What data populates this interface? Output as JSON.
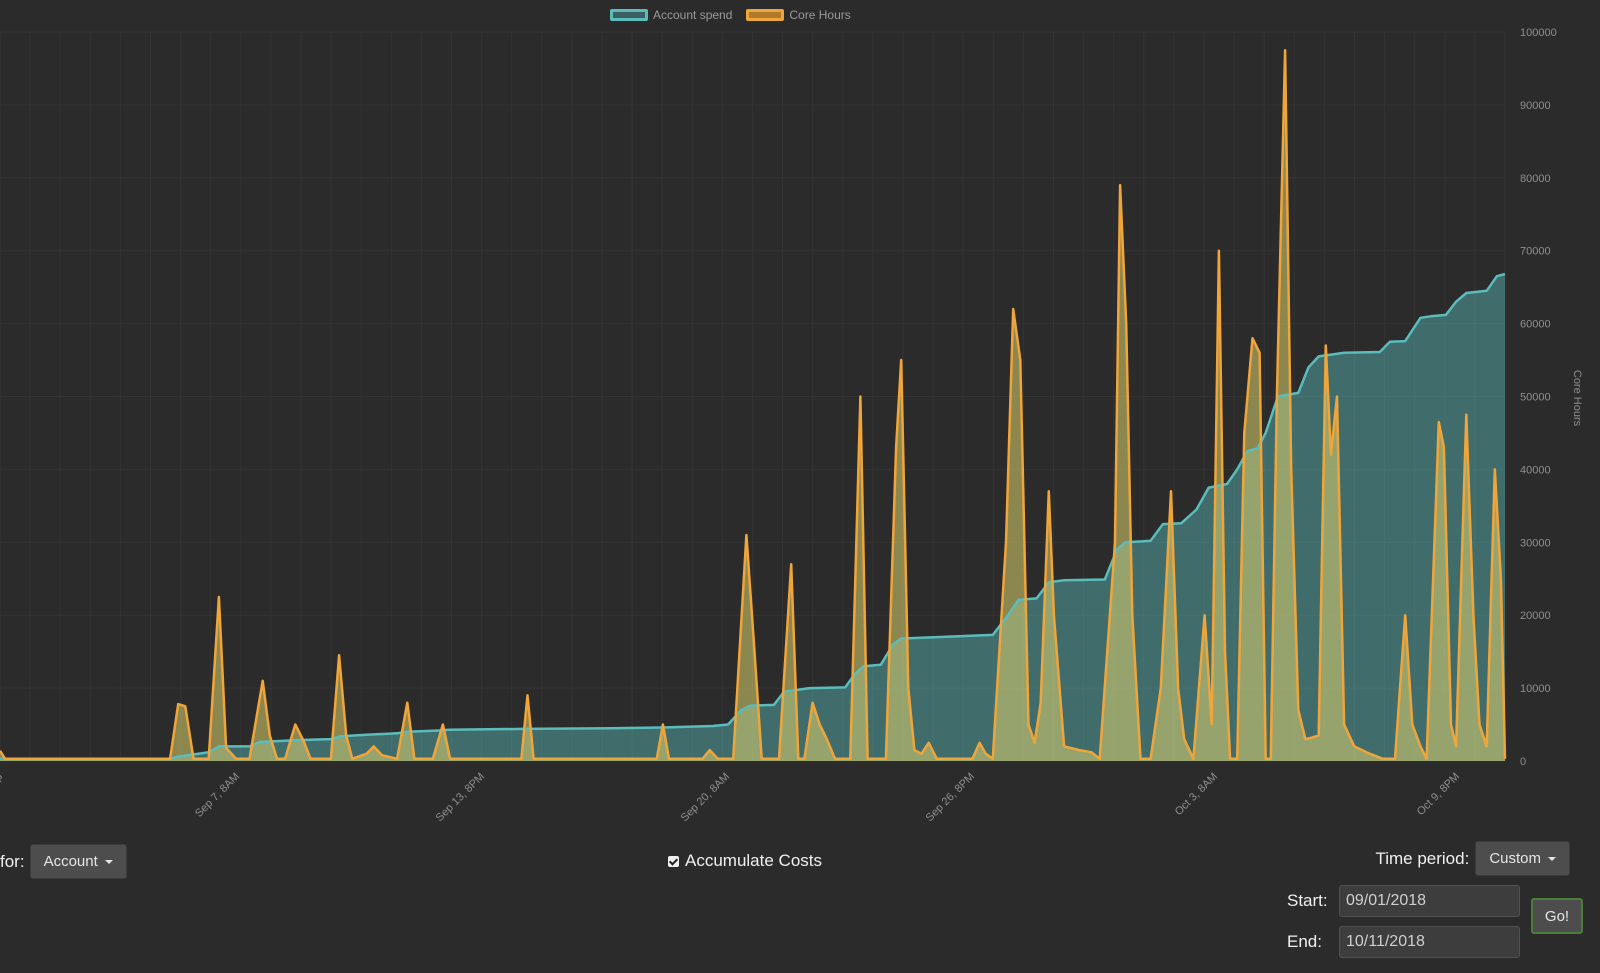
{
  "chart_data": {
    "type": "area",
    "legend": [
      {
        "label": "Account spend",
        "color": "#5bbcbc"
      },
      {
        "label": "Core Hours",
        "color": "#f0a53a"
      }
    ],
    "y_axis_right": {
      "label": "Core Hours",
      "ticks": [
        0,
        10000,
        20000,
        30000,
        40000,
        50000,
        60000,
        70000,
        80000,
        90000,
        100000
      ],
      "ylim": [
        0,
        100000
      ]
    },
    "x_axis": {
      "ticks": [
        "Sep 7, 8AM",
        "Sep 13, 8PM",
        "Sep 20, 8AM",
        "Sep 26, 8PM",
        "Oct 3, 8AM",
        "Oct 9, 8PM"
      ]
    },
    "grid": true,
    "series": [
      {
        "name": "Account spend",
        "color": "#5bbcbc",
        "fill": "rgba(91,188,188,0.45)",
        "points": [
          [
            0,
            300
          ],
          [
            167,
            300
          ],
          [
            175,
            600
          ],
          [
            205,
            1200
          ],
          [
            215,
            2000
          ],
          [
            245,
            2000
          ],
          [
            255,
            2600
          ],
          [
            282,
            2800
          ],
          [
            300,
            2900
          ],
          [
            325,
            3000
          ],
          [
            335,
            3400
          ],
          [
            360,
            3600
          ],
          [
            390,
            3800
          ],
          [
            400,
            4000
          ],
          [
            435,
            4200
          ],
          [
            440,
            4300
          ],
          [
            515,
            4400
          ],
          [
            600,
            4500
          ],
          [
            650,
            4600
          ],
          [
            700,
            4800
          ],
          [
            715,
            5000
          ],
          [
            728,
            7000
          ],
          [
            737,
            7600
          ],
          [
            760,
            7700
          ],
          [
            770,
            9500
          ],
          [
            795,
            10000
          ],
          [
            830,
            10100
          ],
          [
            840,
            12000
          ],
          [
            848,
            13000
          ],
          [
            865,
            13200
          ],
          [
            877,
            16000
          ],
          [
            885,
            16800
          ],
          [
            905,
            16900
          ],
          [
            920,
            17000
          ],
          [
            975,
            17300
          ],
          [
            990,
            20000
          ],
          [
            1000,
            22100
          ],
          [
            1018,
            22300
          ],
          [
            1030,
            24500
          ],
          [
            1045,
            24800
          ],
          [
            1085,
            24900
          ],
          [
            1097,
            29000
          ],
          [
            1105,
            30000
          ],
          [
            1130,
            30200
          ],
          [
            1142,
            32500
          ],
          [
            1160,
            32600
          ],
          [
            1175,
            34500
          ],
          [
            1187,
            37500
          ],
          [
            1205,
            38000
          ],
          [
            1215,
            40000
          ],
          [
            1225,
            42500
          ],
          [
            1235,
            42900
          ],
          [
            1243,
            45000
          ],
          [
            1255,
            50000
          ],
          [
            1275,
            50500
          ],
          [
            1285,
            54000
          ],
          [
            1295,
            55500
          ],
          [
            1320,
            56000
          ],
          [
            1355,
            56100
          ],
          [
            1365,
            57500
          ],
          [
            1380,
            57600
          ],
          [
            1395,
            60800
          ],
          [
            1405,
            61000
          ],
          [
            1420,
            61200
          ],
          [
            1430,
            63000
          ],
          [
            1440,
            64200
          ],
          [
            1460,
            64500
          ],
          [
            1470,
            66500
          ],
          [
            1478,
            66800
          ]
        ]
      },
      {
        "name": "Core Hours",
        "color": "#f0a53a",
        "fill": "rgba(220,210,110,0.55)",
        "points": [
          [
            0,
            1400
          ],
          [
            5,
            300
          ],
          [
            160,
            300
          ],
          [
            167,
            300
          ],
          [
            175,
            7800
          ],
          [
            182,
            7500
          ],
          [
            190,
            300
          ],
          [
            205,
            300
          ],
          [
            215,
            22500
          ],
          [
            222,
            1800
          ],
          [
            232,
            300
          ],
          [
            245,
            300
          ],
          [
            258,
            11000
          ],
          [
            265,
            3500
          ],
          [
            272,
            300
          ],
          [
            280,
            300
          ],
          [
            290,
            5000
          ],
          [
            298,
            2800
          ],
          [
            305,
            300
          ],
          [
            325,
            300
          ],
          [
            333,
            14500
          ],
          [
            340,
            3500
          ],
          [
            346,
            300
          ],
          [
            360,
            1000
          ],
          [
            367,
            2000
          ],
          [
            375,
            800
          ],
          [
            390,
            300
          ],
          [
            400,
            8000
          ],
          [
            407,
            300
          ],
          [
            425,
            300
          ],
          [
            435,
            5000
          ],
          [
            442,
            300
          ],
          [
            512,
            300
          ],
          [
            518,
            9000
          ],
          [
            524,
            300
          ],
          [
            645,
            300
          ],
          [
            651,
            5000
          ],
          [
            657,
            300
          ],
          [
            690,
            300
          ],
          [
            697,
            1500
          ],
          [
            705,
            300
          ],
          [
            720,
            300
          ],
          [
            733,
            31000
          ],
          [
            740,
            17000
          ],
          [
            748,
            300
          ],
          [
            765,
            300
          ],
          [
            777,
            27000
          ],
          [
            784,
            300
          ],
          [
            790,
            300
          ],
          [
            798,
            8000
          ],
          [
            805,
            5000
          ],
          [
            812,
            3000
          ],
          [
            820,
            300
          ],
          [
            835,
            300
          ],
          [
            845,
            50000
          ],
          [
            852,
            300
          ],
          [
            870,
            300
          ],
          [
            880,
            43000
          ],
          [
            885,
            55000
          ],
          [
            892,
            10000
          ],
          [
            898,
            1500
          ],
          [
            905,
            1000
          ],
          [
            912,
            2500
          ],
          [
            920,
            300
          ],
          [
            940,
            300
          ],
          [
            955,
            300
          ],
          [
            962,
            2500
          ],
          [
            968,
            1000
          ],
          [
            975,
            300
          ],
          [
            988,
            30000
          ],
          [
            995,
            62000
          ],
          [
            1002,
            55000
          ],
          [
            1010,
            5000
          ],
          [
            1016,
            2500
          ],
          [
            1022,
            8000
          ],
          [
            1030,
            37000
          ],
          [
            1035,
            20000
          ],
          [
            1045,
            2000
          ],
          [
            1060,
            1500
          ],
          [
            1072,
            1200
          ],
          [
            1080,
            300
          ],
          [
            1095,
            30000
          ],
          [
            1100,
            79000
          ],
          [
            1106,
            60000
          ],
          [
            1112,
            20000
          ],
          [
            1120,
            300
          ],
          [
            1130,
            300
          ],
          [
            1140,
            10000
          ],
          [
            1150,
            37000
          ],
          [
            1157,
            10000
          ],
          [
            1163,
            3000
          ],
          [
            1172,
            300
          ],
          [
            1183,
            20000
          ],
          [
            1190,
            5000
          ],
          [
            1197,
            70000
          ],
          [
            1203,
            15000
          ],
          [
            1208,
            300
          ],
          [
            1215,
            300
          ],
          [
            1222,
            45000
          ],
          [
            1230,
            58000
          ],
          [
            1237,
            56000
          ],
          [
            1243,
            300
          ],
          [
            1248,
            300
          ],
          [
            1254,
            50000
          ],
          [
            1262,
            97500
          ],
          [
            1268,
            40000
          ],
          [
            1275,
            7000
          ],
          [
            1282,
            3000
          ],
          [
            1288,
            3200
          ],
          [
            1295,
            3500
          ],
          [
            1302,
            57000
          ],
          [
            1307,
            42000
          ],
          [
            1313,
            50000
          ],
          [
            1320,
            5000
          ],
          [
            1330,
            2000
          ],
          [
            1345,
            1000
          ],
          [
            1358,
            300
          ],
          [
            1370,
            300
          ],
          [
            1380,
            20000
          ],
          [
            1387,
            5000
          ],
          [
            1395,
            2000
          ],
          [
            1401,
            300
          ],
          [
            1413,
            46500
          ],
          [
            1418,
            43000
          ],
          [
            1425,
            5000
          ],
          [
            1430,
            2000
          ],
          [
            1440,
            47500
          ],
          [
            1447,
            20000
          ],
          [
            1453,
            5000
          ],
          [
            1460,
            2000
          ],
          [
            1468,
            40000
          ],
          [
            1474,
            25000
          ],
          [
            1478,
            300
          ]
        ]
      }
    ]
  },
  "controls": {
    "for_label": "for:",
    "account_button": "Account",
    "accumulate_label": "Accumulate Costs",
    "time_period_label": "Time period:",
    "custom_button": "Custom",
    "start_label": "Start:",
    "start_value": "09/01/2018",
    "end_label": "End:",
    "end_value": "10/11/2018",
    "go_button": "Go!"
  }
}
